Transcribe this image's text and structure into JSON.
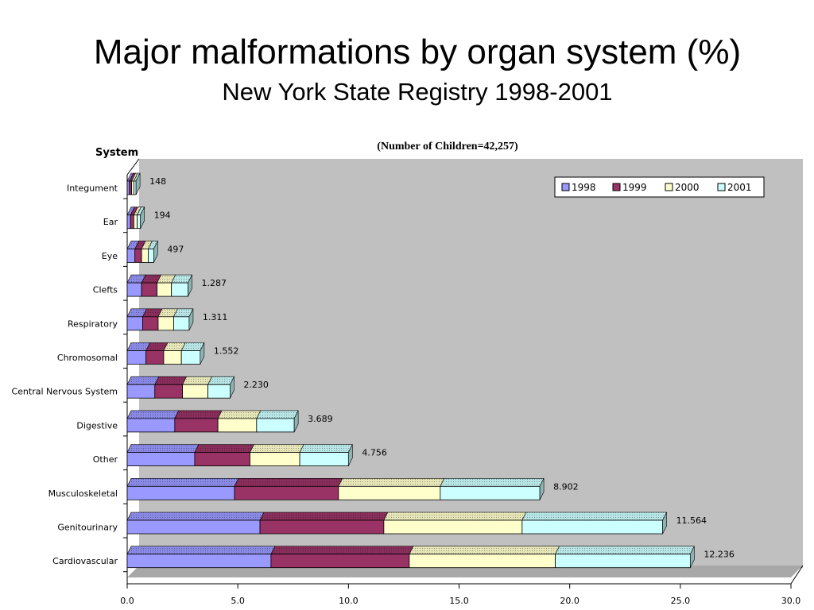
{
  "slide": {
    "title": "Major malformations by organ system (%)",
    "subtitle": "New York State Registry 1998-2001"
  },
  "chart_data": {
    "type": "bar",
    "orientation": "horizontal",
    "stacked": true,
    "style": "3d",
    "yaxis_title": "System",
    "annotation": "(Number of Children=42,257)",
    "categories": [
      "Integument",
      "Ear",
      "Eye",
      "Clefts",
      "Respiratory",
      "Chromosomal",
      "Central Nervous System",
      "Digestive",
      "Other",
      "Musculoskeletal",
      "Genitourinary",
      "Cardiovascular"
    ],
    "totals_text": [
      "148",
      "194",
      "497",
      "1.287",
      "1.311",
      "1.552",
      "2.230",
      "3.689",
      "4.756",
      "8.902",
      "11.564",
      "12.236"
    ],
    "series": [
      {
        "name": "1998",
        "values": [
          0.1,
          0.15,
          0.35,
          0.65,
          0.7,
          0.85,
          1.25,
          2.15,
          3.05,
          4.85,
          6.0,
          6.5
        ],
        "color": "#9999ff"
      },
      {
        "name": "1999",
        "values": [
          0.1,
          0.15,
          0.3,
          0.7,
          0.7,
          0.8,
          1.25,
          1.95,
          2.5,
          4.7,
          5.6,
          6.25
        ],
        "color": "#993366"
      },
      {
        "name": "2000",
        "values": [
          0.1,
          0.15,
          0.3,
          0.65,
          0.7,
          0.8,
          1.15,
          1.75,
          2.25,
          4.6,
          6.25,
          6.6
        ],
        "color": "#ffffcc"
      },
      {
        "name": "2001",
        "values": [
          0.1,
          0.15,
          0.25,
          0.75,
          0.7,
          0.85,
          1.0,
          1.7,
          2.2,
          4.5,
          6.35,
          6.1
        ],
        "color": "#ccffff"
      }
    ],
    "xaxis": {
      "min": 0,
      "max": 30,
      "ticks": [
        "0.0",
        "5.0",
        "10.0",
        "15.0",
        "20.0",
        "25.0",
        "30.0"
      ]
    },
    "legend_position": "top-right",
    "background_color": "#c0c0c0",
    "grid": false
  }
}
